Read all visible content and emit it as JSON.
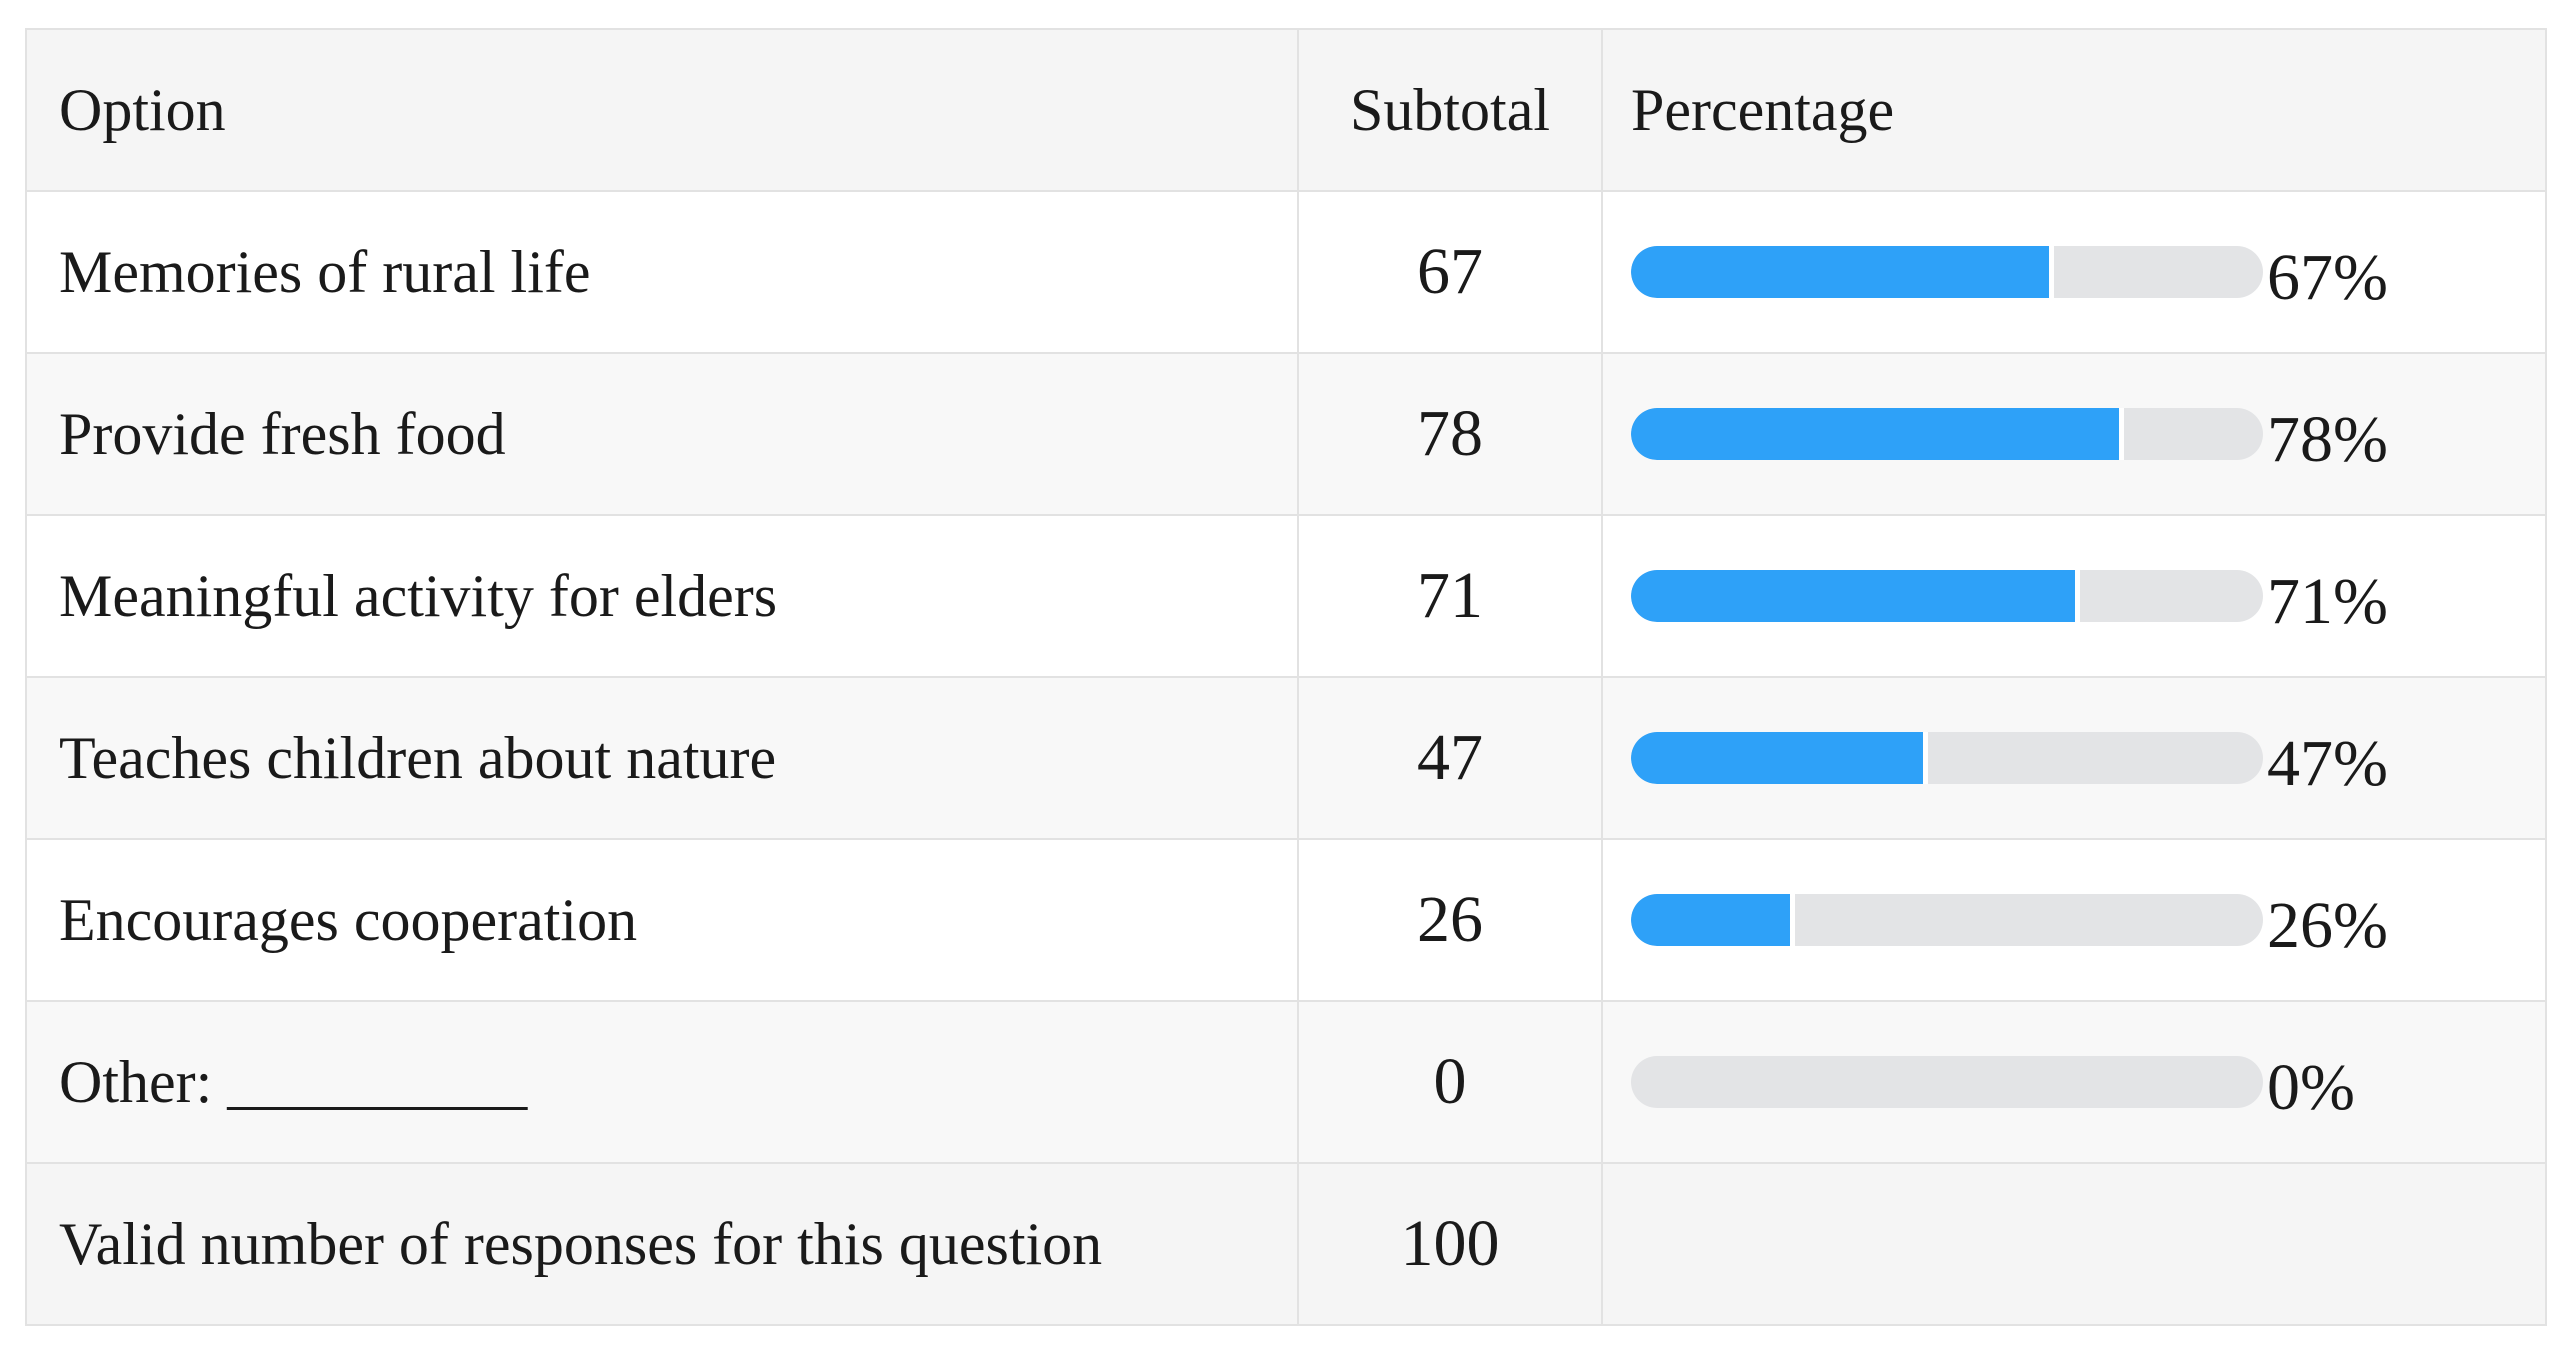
{
  "table": {
    "headers": {
      "option": "Option",
      "subtotal": "Subtotal",
      "percentage": "Percentage"
    },
    "rows": [
      {
        "option": "Memories of rural life",
        "subtotal": "67",
        "percentage_label": "67%",
        "fraction": 0.67
      },
      {
        "option": "Provide fresh food",
        "subtotal": "78",
        "percentage_label": "78%",
        "fraction": 0.78
      },
      {
        "option": "Meaningful activity for elders",
        "subtotal": "71",
        "percentage_label": "71%",
        "fraction": 0.71
      },
      {
        "option": "Teaches children about nature",
        "subtotal": "47",
        "percentage_label": "47%",
        "fraction": 0.47
      },
      {
        "option": "Encourages cooperation",
        "subtotal": "26",
        "percentage_label": "26%",
        "fraction": 0.26
      },
      {
        "option": "Other: __________",
        "subtotal": "0",
        "percentage_label": "0%",
        "fraction": 0
      }
    ],
    "footer": {
      "label": "Valid number of responses for this question",
      "value": "100"
    }
  },
  "colors": {
    "bar_fill": "#2ea1f8",
    "bar_track": "#e3e4e6",
    "border": "#e2e2e2",
    "header_bg": "#f5f5f5"
  }
}
